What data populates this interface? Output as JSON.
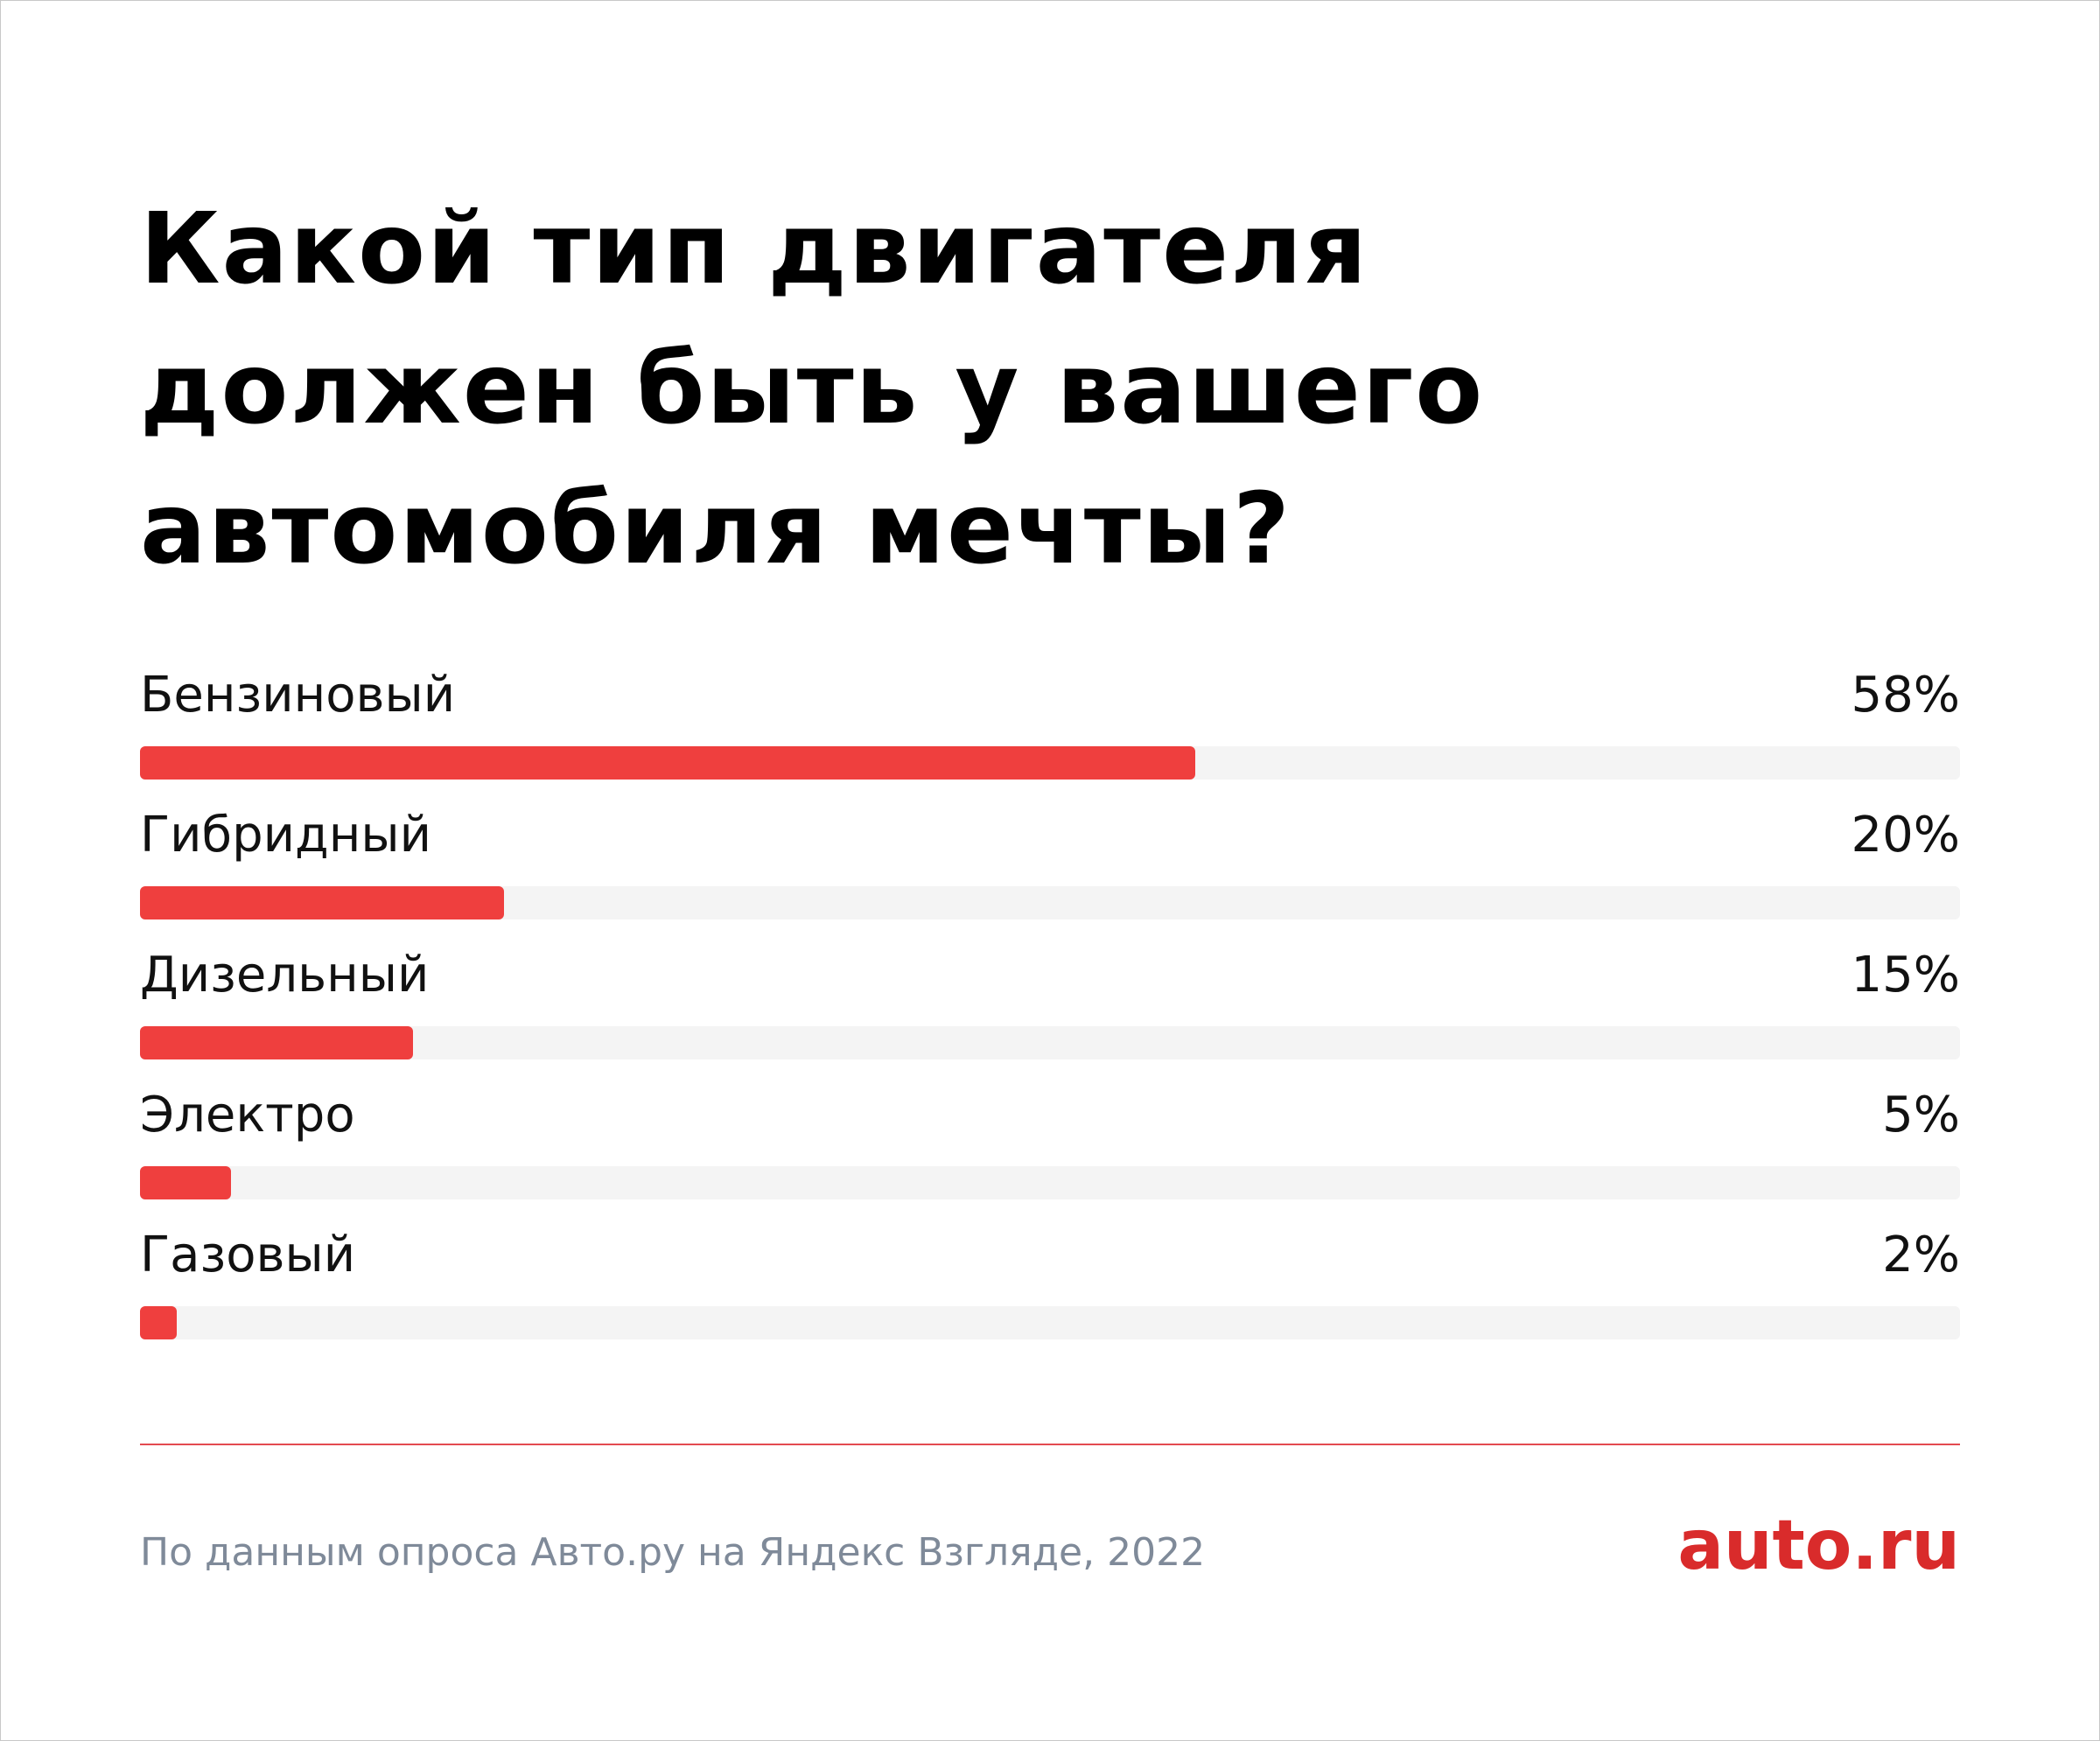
{
  "title": "Какой тип двигателя должен быть у вашего автомобиля мечты?",
  "chart_data": {
    "type": "bar",
    "orientation": "horizontal",
    "title": "Какой тип двигателя должен быть у вашего автомобиля мечты?",
    "categories": [
      "Бензиновый",
      "Гибридный",
      "Дизельный",
      "Электро",
      "Газовый"
    ],
    "values": [
      58,
      20,
      15,
      5,
      2
    ],
    "value_labels": [
      "58%",
      "20%",
      "15%",
      "5%",
      "2%"
    ],
    "unit": "%",
    "xlim": [
      0,
      100
    ],
    "grid": false,
    "legend": "none"
  },
  "source": "По данным опроса Авто.ру на Яндекс Взгляде, 2022",
  "logo": "auto.ru",
  "colors": {
    "bar": "#ef3f3e",
    "track": "#f4f4f4",
    "divider": "#e34a50",
    "source_text": "#7f8a99",
    "logo": "#d92b2b"
  }
}
